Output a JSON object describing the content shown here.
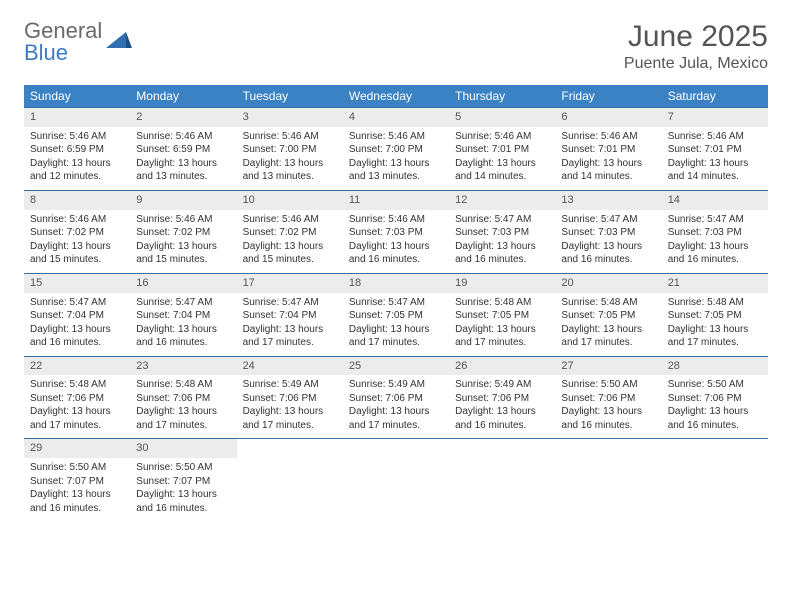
{
  "logo": {
    "text_gray": "General",
    "text_blue": "Blue"
  },
  "title": "June 2025",
  "location": "Puente Jula, Mexico",
  "colors": {
    "header_bg": "#3b82c4",
    "row_border": "#3b6fa0",
    "daynum_bg": "#ececec",
    "logo_gray": "#6a6a6a",
    "logo_blue": "#3b7cc4"
  },
  "weekdays": [
    "Sunday",
    "Monday",
    "Tuesday",
    "Wednesday",
    "Thursday",
    "Friday",
    "Saturday"
  ],
  "weeks": [
    [
      {
        "n": "1",
        "sr": "5:46 AM",
        "ss": "6:59 PM",
        "dl": "13 hours and 12 minutes."
      },
      {
        "n": "2",
        "sr": "5:46 AM",
        "ss": "6:59 PM",
        "dl": "13 hours and 13 minutes."
      },
      {
        "n": "3",
        "sr": "5:46 AM",
        "ss": "7:00 PM",
        "dl": "13 hours and 13 minutes."
      },
      {
        "n": "4",
        "sr": "5:46 AM",
        "ss": "7:00 PM",
        "dl": "13 hours and 13 minutes."
      },
      {
        "n": "5",
        "sr": "5:46 AM",
        "ss": "7:01 PM",
        "dl": "13 hours and 14 minutes."
      },
      {
        "n": "6",
        "sr": "5:46 AM",
        "ss": "7:01 PM",
        "dl": "13 hours and 14 minutes."
      },
      {
        "n": "7",
        "sr": "5:46 AM",
        "ss": "7:01 PM",
        "dl": "13 hours and 14 minutes."
      }
    ],
    [
      {
        "n": "8",
        "sr": "5:46 AM",
        "ss": "7:02 PM",
        "dl": "13 hours and 15 minutes."
      },
      {
        "n": "9",
        "sr": "5:46 AM",
        "ss": "7:02 PM",
        "dl": "13 hours and 15 minutes."
      },
      {
        "n": "10",
        "sr": "5:46 AM",
        "ss": "7:02 PM",
        "dl": "13 hours and 15 minutes."
      },
      {
        "n": "11",
        "sr": "5:46 AM",
        "ss": "7:03 PM",
        "dl": "13 hours and 16 minutes."
      },
      {
        "n": "12",
        "sr": "5:47 AM",
        "ss": "7:03 PM",
        "dl": "13 hours and 16 minutes."
      },
      {
        "n": "13",
        "sr": "5:47 AM",
        "ss": "7:03 PM",
        "dl": "13 hours and 16 minutes."
      },
      {
        "n": "14",
        "sr": "5:47 AM",
        "ss": "7:03 PM",
        "dl": "13 hours and 16 minutes."
      }
    ],
    [
      {
        "n": "15",
        "sr": "5:47 AM",
        "ss": "7:04 PM",
        "dl": "13 hours and 16 minutes."
      },
      {
        "n": "16",
        "sr": "5:47 AM",
        "ss": "7:04 PM",
        "dl": "13 hours and 16 minutes."
      },
      {
        "n": "17",
        "sr": "5:47 AM",
        "ss": "7:04 PM",
        "dl": "13 hours and 17 minutes."
      },
      {
        "n": "18",
        "sr": "5:47 AM",
        "ss": "7:05 PM",
        "dl": "13 hours and 17 minutes."
      },
      {
        "n": "19",
        "sr": "5:48 AM",
        "ss": "7:05 PM",
        "dl": "13 hours and 17 minutes."
      },
      {
        "n": "20",
        "sr": "5:48 AM",
        "ss": "7:05 PM",
        "dl": "13 hours and 17 minutes."
      },
      {
        "n": "21",
        "sr": "5:48 AM",
        "ss": "7:05 PM",
        "dl": "13 hours and 17 minutes."
      }
    ],
    [
      {
        "n": "22",
        "sr": "5:48 AM",
        "ss": "7:06 PM",
        "dl": "13 hours and 17 minutes."
      },
      {
        "n": "23",
        "sr": "5:48 AM",
        "ss": "7:06 PM",
        "dl": "13 hours and 17 minutes."
      },
      {
        "n": "24",
        "sr": "5:49 AM",
        "ss": "7:06 PM",
        "dl": "13 hours and 17 minutes."
      },
      {
        "n": "25",
        "sr": "5:49 AM",
        "ss": "7:06 PM",
        "dl": "13 hours and 17 minutes."
      },
      {
        "n": "26",
        "sr": "5:49 AM",
        "ss": "7:06 PM",
        "dl": "13 hours and 16 minutes."
      },
      {
        "n": "27",
        "sr": "5:50 AM",
        "ss": "7:06 PM",
        "dl": "13 hours and 16 minutes."
      },
      {
        "n": "28",
        "sr": "5:50 AM",
        "ss": "7:06 PM",
        "dl": "13 hours and 16 minutes."
      }
    ],
    [
      {
        "n": "29",
        "sr": "5:50 AM",
        "ss": "7:07 PM",
        "dl": "13 hours and 16 minutes."
      },
      {
        "n": "30",
        "sr": "5:50 AM",
        "ss": "7:07 PM",
        "dl": "13 hours and 16 minutes."
      },
      null,
      null,
      null,
      null,
      null
    ]
  ],
  "labels": {
    "sunrise": "Sunrise:",
    "sunset": "Sunset:",
    "daylight": "Daylight:"
  }
}
